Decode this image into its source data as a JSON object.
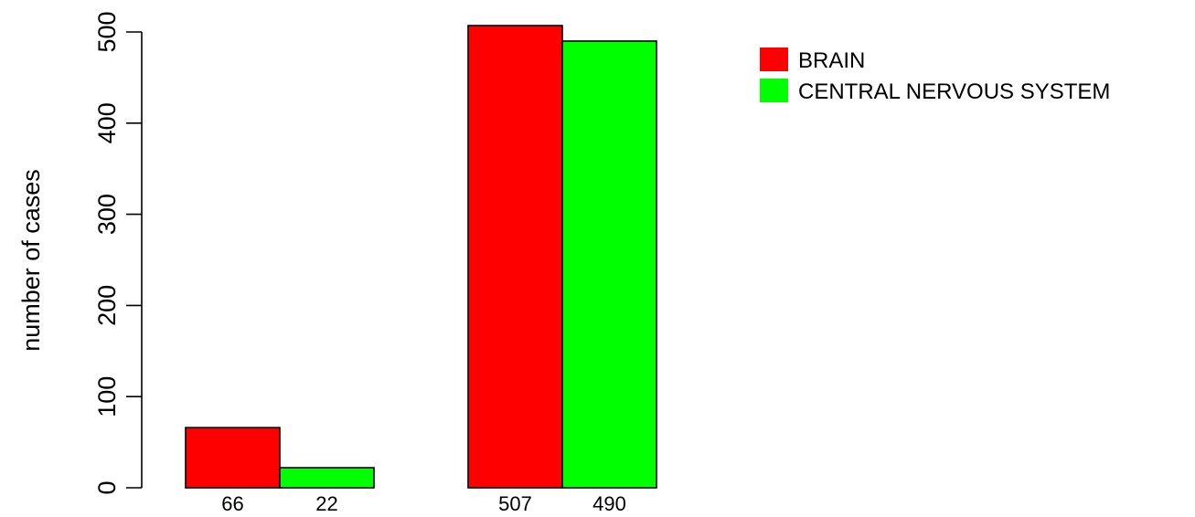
{
  "chart_data": {
    "type": "bar",
    "ylabel": "number of cases",
    "ylim": [
      0,
      500
    ],
    "yticks": [
      "0",
      "100",
      "200",
      "300",
      "400",
      "500"
    ],
    "grid": false,
    "legend_position": "top-right",
    "series": [
      {
        "name": "BRAIN",
        "color": "#FF0000"
      },
      {
        "name": "CENTRAL NERVOUS SYSTEM",
        "color": "#00FF00"
      }
    ],
    "groups": [
      {
        "bars": [
          {
            "series": 0,
            "value": 66,
            "label": "66"
          },
          {
            "series": 1,
            "value": 22,
            "label": "22"
          }
        ]
      },
      {
        "bars": [
          {
            "series": 0,
            "value": 507,
            "label": "507"
          },
          {
            "series": 1,
            "value": 490,
            "label": "490"
          }
        ]
      }
    ]
  }
}
